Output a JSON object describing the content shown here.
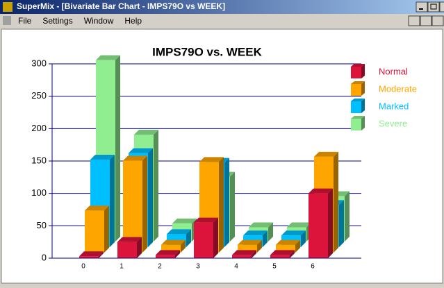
{
  "window": {
    "title": "SuperMix - [Bivariate Bar Chart - IMPS79O vs WEEK]",
    "menu": [
      "File",
      "Settings",
      "Window",
      "Help"
    ]
  },
  "chart_data": {
    "type": "bar3d",
    "title": "IMPS79O vs. WEEK",
    "categories": [
      "0",
      "1",
      "2",
      "3",
      "4",
      "5",
      "6"
    ],
    "series": [
      {
        "name": "Normal",
        "color": "#dc143c",
        "values": [
          3,
          25,
          5,
          55,
          5,
          5,
          100
        ]
      },
      {
        "name": "Moderate",
        "color": "#ffa500",
        "values": [
          65,
          142,
          12,
          140,
          12,
          12,
          148
        ]
      },
      {
        "name": "Marked",
        "color": "#00bfff",
        "values": [
          135,
          145,
          20,
          130,
          18,
          18,
          65
        ]
      },
      {
        "name": "Severe",
        "color": "#90ee90",
        "values": [
          280,
          165,
          28,
          100,
          22,
          22,
          70
        ]
      }
    ],
    "ylim": [
      0,
      300
    ],
    "yticks": [
      0,
      50,
      100,
      150,
      200,
      250,
      300
    ],
    "grid": true,
    "legend": "right"
  }
}
